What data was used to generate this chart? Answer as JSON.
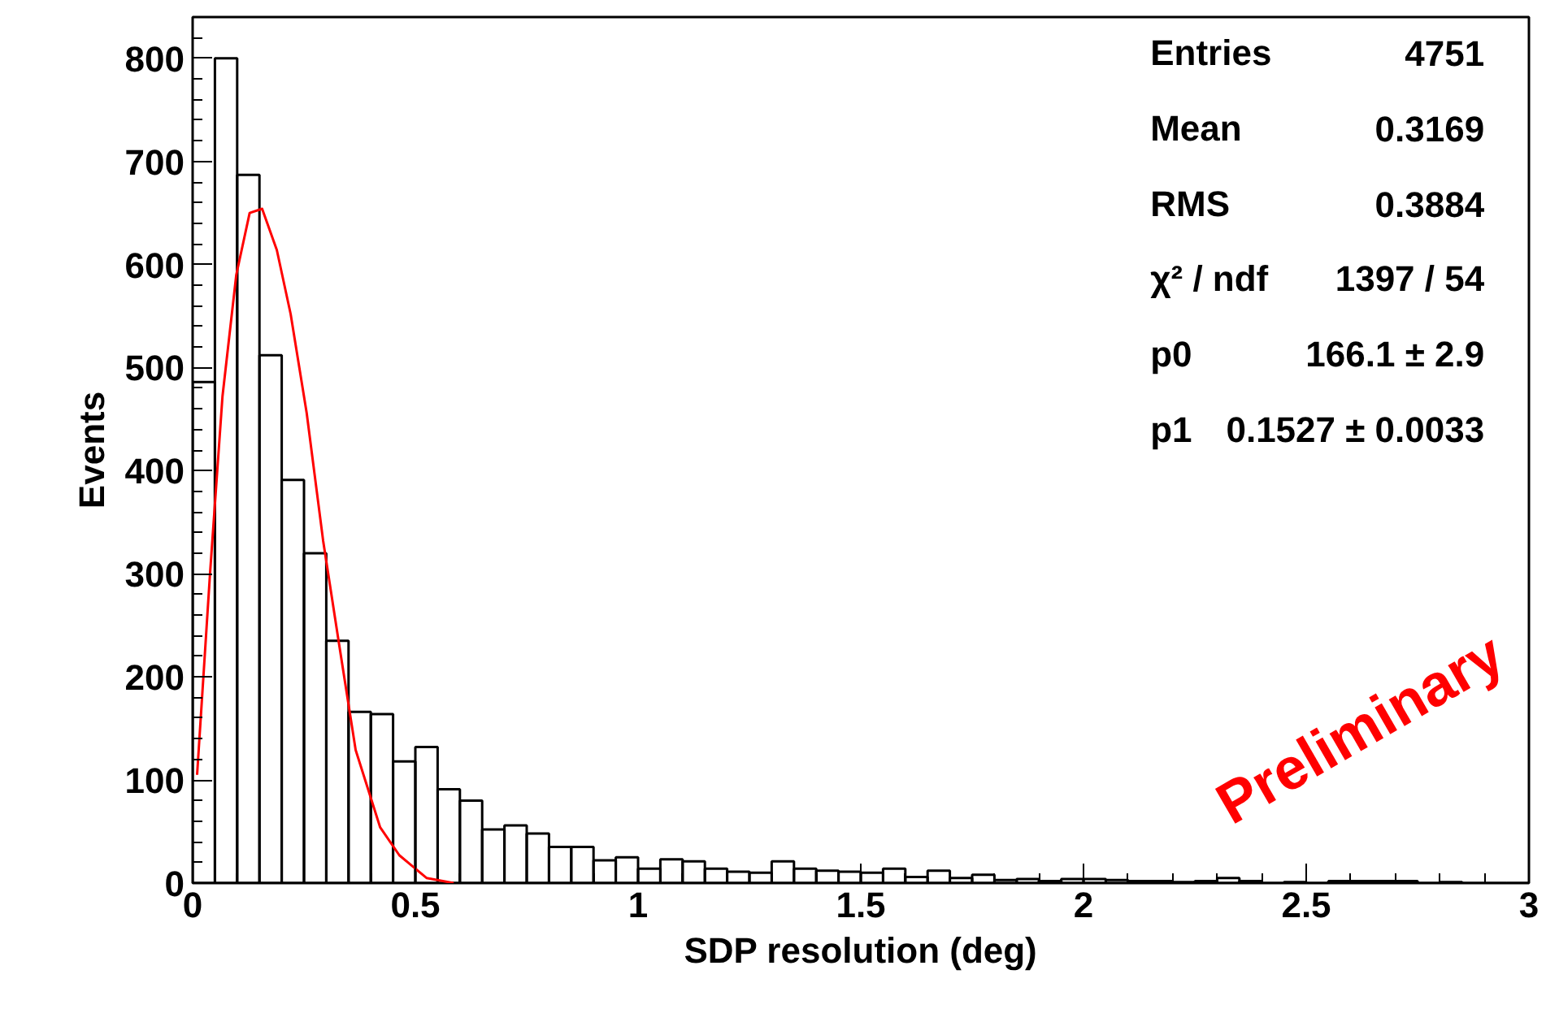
{
  "chart_data": {
    "type": "histogram",
    "xlabel": "SDP resolution (deg)",
    "ylabel": "Events",
    "xlim": [
      0,
      3
    ],
    "xticks": [
      0,
      0.5,
      1,
      1.5,
      2,
      2.5,
      3
    ],
    "ylim": [
      0,
      840
    ],
    "yticks": [
      0,
      100,
      200,
      300,
      400,
      500,
      600,
      700,
      800
    ],
    "grid": false,
    "series": [
      {
        "color": "#000000",
        "bins": [
          0,
          0.05,
          0.1,
          0.15,
          0.2,
          0.25,
          0.3,
          0.35,
          0.4,
          0.45,
          0.5,
          0.55,
          0.6,
          0.65,
          0.7,
          0.75,
          0.8,
          0.85,
          0.9,
          0.95,
          1,
          1.05,
          1.1,
          1.15,
          1.2,
          1.25,
          1.3,
          1.35,
          1.4,
          1.45,
          1.5,
          1.55,
          1.6,
          1.65,
          1.7,
          1.75,
          1.8,
          1.85,
          1.9,
          1.95,
          2,
          2.05,
          2.1,
          2.15,
          2.2,
          2.25,
          2.3,
          2.35,
          2.4,
          2.45,
          2.5,
          2.55,
          2.6,
          2.65,
          2.7,
          2.75,
          2.8,
          2.85,
          2.9,
          2.95,
          3
        ],
        "values": [
          486,
          800,
          687,
          512,
          391,
          320,
          235,
          166,
          164,
          118,
          132,
          91,
          80,
          52,
          56,
          48,
          35,
          35,
          22,
          25,
          14,
          23,
          21,
          14,
          11,
          10,
          21,
          14,
          12,
          11,
          10,
          14,
          6,
          12,
          5,
          8,
          3,
          4,
          2,
          4,
          4,
          3,
          2,
          2,
          1,
          2,
          5,
          2,
          0,
          1,
          0,
          2,
          2,
          2,
          2,
          0,
          1,
          0,
          0,
          0
        ]
      },
      {
        "type": "line",
        "color": "#ff0000",
        "x": [
          0.01,
          0.039,
          0.067,
          0.098,
          0.128,
          0.156,
          0.189,
          0.22,
          0.256,
          0.293,
          0.329,
          0.366,
          0.421,
          0.464,
          0.525,
          0.586
        ],
        "values": [
          105,
          300,
          472,
          590,
          650,
          654,
          614,
          552,
          456,
          332,
          231,
          129,
          54,
          27,
          5,
          0
        ]
      }
    ],
    "annotations": [
      "Entries",
      "4751",
      "Mean",
      "0.3169",
      "RMS",
      "0.3884",
      "χ² / ndf",
      "1397 / 54",
      "p0",
      "166.1 ± 2.9",
      "p1",
      "0.1527 ± 0.0033",
      "Preliminary"
    ]
  }
}
